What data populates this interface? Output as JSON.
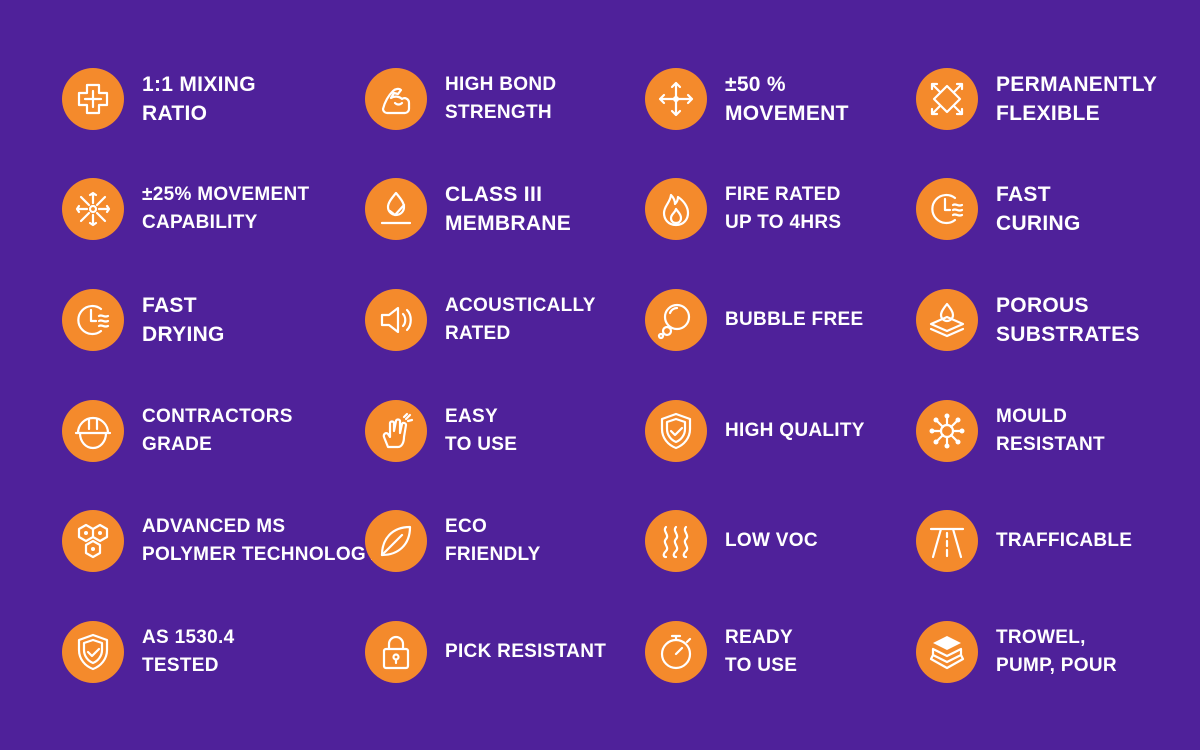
{
  "background_color": "#4f219a",
  "accent_color": "#f48a2c",
  "features": [
    {
      "icon": "plus-cross-icon",
      "lines": [
        "1:1 MIXING",
        "RATIO"
      ]
    },
    {
      "icon": "flexed-arm-icon",
      "lines": [
        "HIGH BOND",
        "STRENGTH"
      ]
    },
    {
      "icon": "move-arrows-icon",
      "lines": [
        "±50 %",
        "MOVEMENT"
      ]
    },
    {
      "icon": "expand-arrows-icon",
      "lines": [
        "PERMANENTLY",
        "FLEXIBLE"
      ]
    },
    {
      "icon": "radial-arrows-icon",
      "lines": [
        "±25% MOVEMENT",
        "CAPABILITY"
      ]
    },
    {
      "icon": "water-drop-membrane-icon",
      "lines": [
        "CLASS III",
        "MEMBRANE"
      ]
    },
    {
      "icon": "flame-icon",
      "lines": [
        "FIRE RATED",
        "UP TO 4HRS"
      ]
    },
    {
      "icon": "clock-wind-icon",
      "lines": [
        "FAST",
        "CURING"
      ]
    },
    {
      "icon": "clock-wind-icon",
      "lines": [
        "FAST",
        "DRYING"
      ]
    },
    {
      "icon": "speaker-icon",
      "lines": [
        "ACOUSTICALLY",
        "RATED"
      ]
    },
    {
      "icon": "bubbles-icon",
      "lines": [
        "BUBBLE FREE"
      ]
    },
    {
      "icon": "drop-layers-icon",
      "lines": [
        "POROUS",
        "SUBSTRATES"
      ]
    },
    {
      "icon": "hard-hat-icon",
      "lines": [
        "CONTRACTORS",
        "GRADE"
      ]
    },
    {
      "icon": "hand-snap-icon",
      "lines": [
        "EASY",
        "TO USE"
      ]
    },
    {
      "icon": "shield-check-icon",
      "lines": [
        "HIGH QUALITY"
      ]
    },
    {
      "icon": "virus-network-icon",
      "lines": [
        "MOULD",
        "RESISTANT"
      ]
    },
    {
      "icon": "hexagon-molecule-icon",
      "lines": [
        "ADVANCED MS",
        "POLYMER TECHNOLOGY"
      ]
    },
    {
      "icon": "leaf-icon",
      "lines": [
        "ECO",
        "FRIENDLY"
      ]
    },
    {
      "icon": "wavy-lines-icon",
      "lines": [
        "LOW VOC"
      ]
    },
    {
      "icon": "road-icon",
      "lines": [
        "TRAFFICABLE"
      ]
    },
    {
      "icon": "shield-check-icon",
      "lines": [
        "AS 1530.4",
        "TESTED"
      ]
    },
    {
      "icon": "padlock-icon",
      "lines": [
        "PICK RESISTANT"
      ]
    },
    {
      "icon": "stopwatch-icon",
      "lines": [
        "READY",
        "TO USE"
      ]
    },
    {
      "icon": "layers-stack-icon",
      "lines": [
        "TROWEL,",
        "PUMP, POUR"
      ]
    }
  ]
}
